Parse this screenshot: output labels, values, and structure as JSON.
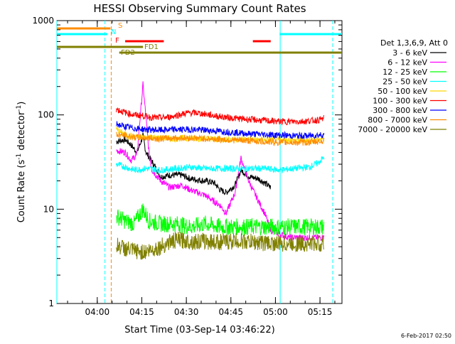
{
  "chart_data": {
    "type": "line",
    "title": "HESSI Observing Summary Count Rates",
    "xlabel": "Start Time (03-Sep-14 03:46:22)",
    "ylabel_main": "Count Rate (s",
    "ylabel_sup1": "-1",
    "ylabel_mid": " detector",
    "ylabel_sup2": "-1",
    "ylabel_end": ")",
    "yscale": "log",
    "ylim": [
      1,
      1000
    ],
    "xlim_minutes": [
      0,
      96
    ],
    "x_ticks": [
      {
        "label": "04:00",
        "minute": 13.6
      },
      {
        "label": "04:15",
        "minute": 28.6
      },
      {
        "label": "04:30",
        "minute": 43.6
      },
      {
        "label": "04:45",
        "minute": 58.6
      },
      {
        "label": "05:00",
        "minute": 73.6
      },
      {
        "label": "05:15",
        "minute": 88.6
      }
    ],
    "y_ticks": [
      {
        "label": "1",
        "value": 1
      },
      {
        "label": "10",
        "value": 10
      },
      {
        "label": "100",
        "value": 100
      },
      {
        "label": "1000",
        "value": 1000
      }
    ],
    "legend_title": "Det 1,3,6,9, Att 0",
    "legend_placement": "right",
    "series": [
      {
        "name": "3 - 6 keV",
        "color": "#000000",
        "points": [
          [
            20,
            52
          ],
          [
            23,
            55
          ],
          [
            25,
            48
          ],
          [
            27,
            40
          ],
          [
            29,
            60
          ],
          [
            30,
            40
          ],
          [
            32,
            32
          ],
          [
            35,
            22
          ],
          [
            38,
            23
          ],
          [
            42,
            23
          ],
          [
            45,
            21
          ],
          [
            50,
            20
          ],
          [
            53,
            19
          ],
          [
            55,
            16
          ],
          [
            57,
            15
          ],
          [
            60,
            18
          ],
          [
            62,
            26
          ],
          [
            65,
            22
          ],
          [
            68,
            21
          ],
          [
            72,
            17
          ]
        ]
      },
      {
        "name": "6 - 12 keV",
        "color": "#ff00ff",
        "points": [
          [
            20,
            42
          ],
          [
            23,
            40
          ],
          [
            25,
            33
          ],
          [
            27,
            38
          ],
          [
            29,
            210
          ],
          [
            30,
            95
          ],
          [
            31,
            40
          ],
          [
            32,
            26
          ],
          [
            35,
            20
          ],
          [
            38,
            17
          ],
          [
            42,
            18
          ],
          [
            45,
            16
          ],
          [
            50,
            14
          ],
          [
            53,
            12
          ],
          [
            55,
            11
          ],
          [
            57,
            9
          ],
          [
            60,
            15
          ],
          [
            62,
            35
          ],
          [
            64,
            22
          ],
          [
            66,
            16
          ],
          [
            70,
            9
          ],
          [
            72,
            6
          ],
          [
            78,
            5
          ],
          [
            84,
            5
          ],
          [
            90,
            5
          ]
        ]
      },
      {
        "name": "12 - 25 keV",
        "color": "#00ff00",
        "points": [
          [
            20,
            8.5
          ],
          [
            23,
            7.5
          ],
          [
            26,
            7
          ],
          [
            29,
            10
          ],
          [
            31,
            7.5
          ],
          [
            35,
            7
          ],
          [
            40,
            7
          ],
          [
            45,
            6.5
          ],
          [
            50,
            7
          ],
          [
            55,
            6.5
          ],
          [
            60,
            6.5
          ],
          [
            65,
            6.5
          ],
          [
            70,
            6.5
          ],
          [
            75,
            6.5
          ],
          [
            80,
            6.5
          ],
          [
            85,
            6.5
          ],
          [
            90,
            6.5
          ]
        ]
      },
      {
        "name": "25 - 50 keV",
        "color": "#00ffff",
        "points": [
          [
            20,
            30
          ],
          [
            23,
            28
          ],
          [
            26,
            26
          ],
          [
            30,
            27
          ],
          [
            35,
            26
          ],
          [
            40,
            27
          ],
          [
            45,
            28
          ],
          [
            50,
            27
          ],
          [
            55,
            27
          ],
          [
            60,
            27
          ],
          [
            65,
            27
          ],
          [
            70,
            27
          ],
          [
            75,
            26
          ],
          [
            80,
            27
          ],
          [
            85,
            28
          ],
          [
            88,
            31
          ],
          [
            90,
            36
          ]
        ]
      },
      {
        "name": "50 - 100 keV",
        "color": "#ffd700",
        "points": [
          [
            20,
            70
          ],
          [
            22,
            64
          ],
          [
            24,
            60
          ],
          [
            27,
            58
          ],
          [
            30,
            58
          ],
          [
            35,
            57
          ],
          [
            40,
            56
          ],
          [
            45,
            57
          ],
          [
            50,
            56
          ],
          [
            55,
            55
          ],
          [
            60,
            55
          ],
          [
            65,
            55
          ],
          [
            70,
            54
          ],
          [
            75,
            54
          ],
          [
            80,
            54
          ],
          [
            85,
            54
          ],
          [
            90,
            56
          ]
        ]
      },
      {
        "name": "100 - 300 keV",
        "color": "#ff0000",
        "points": [
          [
            20,
            115
          ],
          [
            23,
            106
          ],
          [
            26,
            100
          ],
          [
            29,
            98
          ],
          [
            32,
            94
          ],
          [
            35,
            93
          ],
          [
            38,
            95
          ],
          [
            41,
            100
          ],
          [
            44,
            105
          ],
          [
            47,
            105
          ],
          [
            50,
            102
          ],
          [
            53,
            98
          ],
          [
            56,
            95
          ],
          [
            60,
            92
          ],
          [
            64,
            90
          ],
          [
            68,
            88
          ],
          [
            72,
            86
          ],
          [
            76,
            85
          ],
          [
            80,
            85
          ],
          [
            84,
            86
          ],
          [
            88,
            88
          ],
          [
            90,
            92
          ]
        ]
      },
      {
        "name": "300 - 800 keV",
        "color": "#0000ff",
        "points": [
          [
            20,
            80
          ],
          [
            23,
            75
          ],
          [
            26,
            72
          ],
          [
            30,
            70
          ],
          [
            35,
            69
          ],
          [
            40,
            70
          ],
          [
            45,
            70
          ],
          [
            50,
            69
          ],
          [
            55,
            67
          ],
          [
            60,
            65
          ],
          [
            65,
            63
          ],
          [
            70,
            62
          ],
          [
            75,
            61
          ],
          [
            80,
            60
          ],
          [
            85,
            60
          ],
          [
            90,
            62
          ]
        ]
      },
      {
        "name": "800 - 7000 keV",
        "color": "#ff8c00",
        "points": [
          [
            20,
            62
          ],
          [
            23,
            60
          ],
          [
            26,
            58
          ],
          [
            30,
            57
          ],
          [
            35,
            56
          ],
          [
            40,
            57
          ],
          [
            45,
            57
          ],
          [
            50,
            56
          ],
          [
            55,
            55
          ],
          [
            60,
            54
          ],
          [
            65,
            53
          ],
          [
            70,
            52
          ],
          [
            75,
            51
          ],
          [
            80,
            51
          ],
          [
            85,
            51
          ],
          [
            90,
            53
          ]
        ]
      },
      {
        "name": "7000 - 20000 keV",
        "color": "#808000",
        "points": [
          [
            20,
            4.2
          ],
          [
            23,
            3.8
          ],
          [
            26,
            3.6
          ],
          [
            29,
            3.5
          ],
          [
            32,
            3.7
          ],
          [
            35,
            4.0
          ],
          [
            38,
            4.5
          ],
          [
            41,
            4.7
          ],
          [
            44,
            4.6
          ],
          [
            47,
            4.5
          ],
          [
            50,
            4.6
          ],
          [
            53,
            4.5
          ],
          [
            56,
            4.5
          ],
          [
            60,
            4.6
          ],
          [
            65,
            4.5
          ],
          [
            70,
            4.4
          ],
          [
            75,
            4.3
          ],
          [
            80,
            4.3
          ],
          [
            85,
            4.3
          ],
          [
            90,
            4.3
          ]
        ]
      }
    ],
    "state_bars": [
      {
        "label": "S",
        "color": "#ff8c00",
        "segments": [
          [
            0,
            18
          ]
        ]
      },
      {
        "label": "N",
        "color": "#00ffff",
        "segments": [
          [
            0,
            17
          ],
          [
            75,
            96
          ]
        ]
      },
      {
        "label": "F",
        "color": "#ff0000",
        "segments": [
          [
            23,
            36
          ],
          [
            66,
            72
          ]
        ]
      },
      {
        "label": "FD1",
        "color": "#808000",
        "segments": [
          [
            0,
            29
          ]
        ]
      },
      {
        "label": "FD2",
        "color": "#808000",
        "segments": [
          [
            21,
            96
          ]
        ]
      }
    ],
    "vertical_lines": [
      {
        "minute": 0,
        "color": "#00ffff",
        "style": "solid"
      },
      {
        "minute": 16.2,
        "color": "#00ffff",
        "style": "dashed"
      },
      {
        "minute": 18.3,
        "color": "#ff8c00",
        "style": "dashed"
      },
      {
        "minute": 75.2,
        "color": "#00ffff",
        "style": "solid"
      },
      {
        "minute": 92.9,
        "color": "#00ffff",
        "style": "dashed"
      }
    ]
  },
  "footer_timestamp": "6-Feb-2017 02:50"
}
